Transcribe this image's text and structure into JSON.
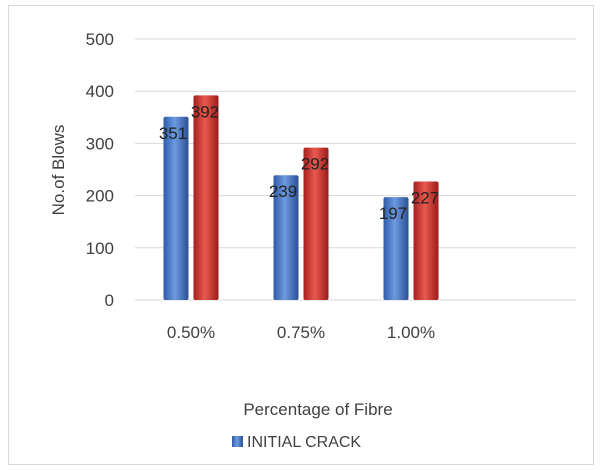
{
  "chart_data": {
    "type": "bar",
    "title": "",
    "xlabel": "Percentage of Fibre",
    "ylabel": "No.of Blows",
    "categories": [
      "0.50%",
      "0.75%",
      "1.00%"
    ],
    "series": [
      {
        "name": "INITIAL CRACK",
        "values": [
          351,
          239,
          197
        ],
        "color": "#4472c4"
      },
      {
        "values": [
          392,
          292,
          227
        ],
        "color": "#c0392b"
      }
    ],
    "ylim": [
      0,
      500
    ],
    "yticks": [
      0,
      100,
      200,
      300,
      400,
      500
    ],
    "grid": true,
    "legend_position": "bottom",
    "legend": [
      {
        "label": "INITIAL CRACK",
        "color": "#4472c4"
      }
    ]
  }
}
